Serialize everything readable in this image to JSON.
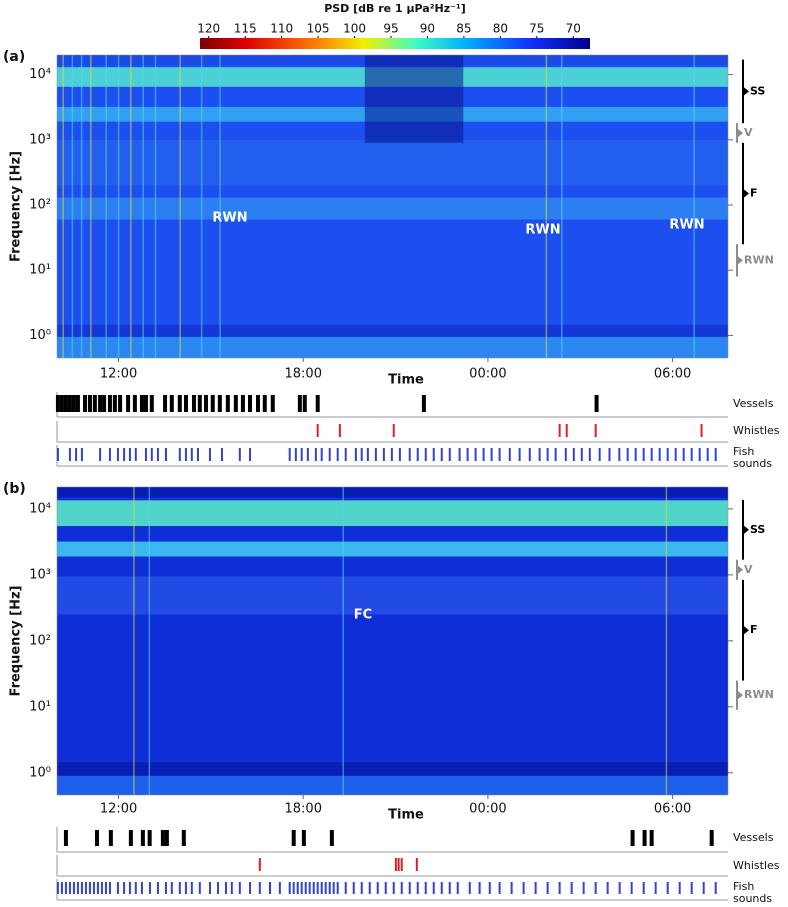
{
  "colorbar": {
    "title": "PSD [dB re 1 μPa²Hz⁻¹]",
    "ticks": [
      120,
      115,
      110,
      105,
      100,
      95,
      90,
      85,
      80,
      75,
      70
    ],
    "clim": [
      121.2,
      67.7
    ]
  },
  "chart_data": [
    {
      "type": "spectrogram",
      "panel": "(a)",
      "x_label": "Time",
      "y_label": "Frequency [Hz]",
      "y_log": true,
      "xlim": [
        10,
        31.8
      ],
      "xticks": [
        {
          "value": 12,
          "label": "12:00"
        },
        {
          "value": 18,
          "label": "18:00"
        },
        {
          "value": 24,
          "label": "00:00"
        },
        {
          "value": 30,
          "label": "06:00"
        }
      ],
      "ylim": [
        0.45,
        20000
      ],
      "yticks": [
        {
          "value": 1,
          "label": "10⁰"
        },
        {
          "value": 10,
          "label": "10¹"
        },
        {
          "value": 100,
          "label": "10²"
        },
        {
          "value": 1000,
          "label": "10³"
        },
        {
          "value": 10000,
          "label": "10⁴"
        }
      ],
      "annotations": [
        "RWN",
        "RWN",
        "RWN"
      ],
      "bands": [
        {
          "label": "SS",
          "range": [
            1800,
            17000
          ],
          "color": "#000000"
        },
        {
          "label": "V",
          "range": [
            900,
            1800
          ],
          "color": "#8c8c8c"
        },
        {
          "label": "F",
          "range": [
            25,
            900
          ],
          "color": "#000000"
        },
        {
          "label": "RWN",
          "range": [
            8,
            25
          ],
          "color": "#8c8c8c"
        }
      ],
      "tracks": [
        {
          "name": "Vessels",
          "color": "#000000",
          "times": [
            10.03,
            10.16,
            10.29,
            10.42,
            10.55,
            10.68,
            10.91,
            11.07,
            11.23,
            11.4,
            11.53,
            11.72,
            11.88,
            12.05,
            12.31,
            12.53,
            12.76,
            12.89,
            13.08,
            13.51,
            13.73,
            13.99,
            14.19,
            14.45,
            14.64,
            14.84,
            15.06,
            15.29,
            15.55,
            15.81,
            16.04,
            16.27,
            16.53,
            16.75,
            17.01,
            17.89,
            18.05,
            18.47,
            21.92,
            27.53
          ]
        },
        {
          "name": "Whistles",
          "color": "#e02020",
          "times": [
            18.47,
            19.19,
            20.94,
            26.33,
            26.56,
            27.5,
            30.94
          ]
        },
        {
          "name": "Fish sounds",
          "color": "#3344cc",
          "times": [
            10.03,
            10.42,
            10.62,
            10.81,
            11.4,
            11.72,
            11.98,
            12.18,
            12.37,
            12.56,
            12.89,
            13.08,
            13.28,
            13.54,
            13.99,
            14.19,
            14.38,
            14.58,
            14.97,
            15.36,
            15.94,
            16.27,
            17.56,
            17.76,
            17.95,
            18.15,
            18.41,
            18.6,
            18.86,
            19.12,
            19.38,
            19.71,
            19.9,
            20.1,
            20.36,
            20.62,
            20.88,
            21.14,
            21.46,
            21.72,
            21.98,
            22.24,
            22.5,
            22.76,
            23.08,
            23.34,
            23.6,
            23.86,
            24.12,
            24.38,
            24.71,
            25.03,
            25.36,
            25.68,
            25.94,
            26.2,
            26.53,
            26.79,
            27.05,
            27.31,
            27.63,
            27.95,
            28.27,
            28.54,
            28.8,
            29.06,
            29.32,
            29.58,
            29.84,
            30.1,
            30.36,
            30.62,
            30.88,
            31.14,
            31.4
          ]
        }
      ]
    },
    {
      "type": "spectrogram",
      "panel": "(b)",
      "x_label": "Time",
      "y_label": "Frequency [Hz]",
      "y_log": true,
      "xlim": [
        10,
        31.8
      ],
      "xticks": [
        {
          "value": 12,
          "label": "12:00"
        },
        {
          "value": 18,
          "label": "18:00"
        },
        {
          "value": 24,
          "label": "00:00"
        },
        {
          "value": 30,
          "label": "06:00"
        }
      ],
      "ylim": [
        0.46,
        21500
      ],
      "yticks": [
        {
          "value": 1,
          "label": "10⁰"
        },
        {
          "value": 10,
          "label": "10¹"
        },
        {
          "value": 100,
          "label": "10²"
        },
        {
          "value": 1000,
          "label": "10³"
        },
        {
          "value": 10000,
          "label": "10⁴"
        }
      ],
      "annotations": [
        "FC"
      ],
      "bands": [
        {
          "label": "SS",
          "range": [
            1700,
            13700
          ],
          "color": "#000000"
        },
        {
          "label": "V",
          "range": [
            840,
            1700
          ],
          "color": "#8c8c8c"
        },
        {
          "label": "F",
          "range": [
            25,
            840
          ],
          "color": "#000000"
        },
        {
          "label": "RWN",
          "range": [
            9,
            25
          ],
          "color": "#8c8c8c"
        }
      ],
      "tracks": [
        {
          "name": "Vessels",
          "color": "#000000",
          "times": [
            10.29,
            11.3,
            11.75,
            12.4,
            12.79,
            13.01,
            13.44,
            13.57,
            14.12,
            17.69,
            18.02,
            18.93,
            28.7,
            29.09,
            29.32,
            31.27
          ]
        },
        {
          "name": "Whistles",
          "color": "#e02020",
          "times": [
            16.59,
            21.01,
            21.1,
            21.2,
            21.69
          ]
        },
        {
          "name": "Fish sounds",
          "color": "#3344cc",
          "times": [
            10.03,
            10.16,
            10.29,
            10.42,
            10.55,
            10.68,
            10.81,
            10.94,
            11.07,
            11.2,
            11.33,
            11.46,
            11.59,
            11.72,
            11.98,
            12.18,
            12.37,
            12.56,
            12.76,
            13.02,
            13.28,
            13.54,
            13.73,
            13.99,
            14.19,
            14.38,
            14.64,
            14.97,
            15.23,
            15.49,
            15.68,
            15.94,
            16.27,
            16.59,
            16.92,
            17.24,
            17.56,
            17.69,
            17.82,
            17.95,
            18.08,
            18.21,
            18.34,
            18.47,
            18.6,
            18.73,
            18.86,
            18.99,
            19.12,
            19.38,
            19.64,
            19.9,
            20.16,
            20.42,
            20.68,
            20.94,
            21.2,
            21.46,
            21.72,
            21.98,
            22.24,
            22.5,
            22.76,
            23.02,
            23.41,
            23.73,
            24.06,
            24.38,
            24.77,
            25.16,
            25.55,
            25.94,
            26.33,
            26.72,
            27.11,
            27.5,
            27.89,
            28.28,
            28.67,
            29.06,
            29.45,
            29.84,
            30.23,
            30.62,
            31.01,
            31.4
          ]
        }
      ]
    }
  ]
}
